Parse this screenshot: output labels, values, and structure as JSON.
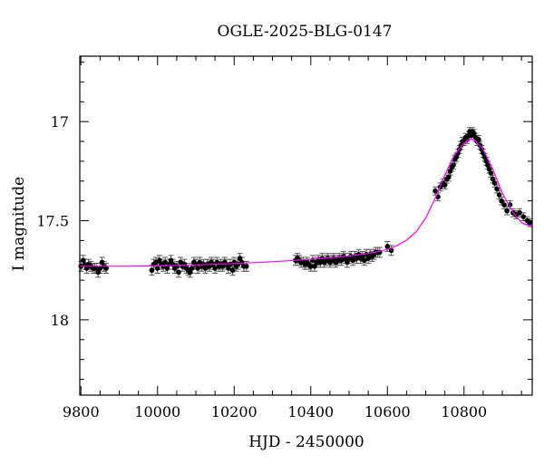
{
  "chart_data": {
    "type": "scatter",
    "title": "OGLE-2025-BLG-0147",
    "xlabel": "HJD - 2450000",
    "ylabel": "I magnitude",
    "xlim": [
      9797,
      10978
    ],
    "ylim": [
      18.38,
      16.67
    ],
    "y_inverted": true,
    "grid": false,
    "x_ticks": [
      9800,
      10000,
      10200,
      10400,
      10600,
      10800
    ],
    "y_ticks": [
      17,
      17.5,
      18
    ],
    "colors": {
      "points": "#000000",
      "errorbars": "#555555",
      "model": "#ff00ff",
      "axes": "#000000"
    },
    "series": [
      {
        "kind": "points_with_errorbars",
        "points": [
          [
            9800,
            17.73,
            0.025
          ],
          [
            9806,
            17.7,
            0.025
          ],
          [
            9810,
            17.72,
            0.025
          ],
          [
            9815,
            17.74,
            0.025
          ],
          [
            9820,
            17.72,
            0.025
          ],
          [
            9826,
            17.73,
            0.025
          ],
          [
            9832,
            17.74,
            0.025
          ],
          [
            9836,
            17.74,
            0.025
          ],
          [
            9840,
            17.74,
            0.025
          ],
          [
            9845,
            17.76,
            0.025
          ],
          [
            9850,
            17.74,
            0.025
          ],
          [
            9855,
            17.71,
            0.025
          ],
          [
            9860,
            17.73,
            0.025
          ],
          [
            9866,
            17.74,
            0.025
          ],
          [
            9985,
            17.75,
            0.025
          ],
          [
            9990,
            17.72,
            0.025
          ],
          [
            9996,
            17.71,
            0.025
          ],
          [
            10000,
            17.74,
            0.025
          ],
          [
            10005,
            17.7,
            0.025
          ],
          [
            10010,
            17.72,
            0.025
          ],
          [
            10015,
            17.73,
            0.025
          ],
          [
            10020,
            17.71,
            0.025
          ],
          [
            10025,
            17.74,
            0.025
          ],
          [
            10030,
            17.72,
            0.025
          ],
          [
            10035,
            17.7,
            0.025
          ],
          [
            10040,
            17.72,
            0.025
          ],
          [
            10045,
            17.74,
            0.025
          ],
          [
            10050,
            17.73,
            0.025
          ],
          [
            10055,
            17.76,
            0.025
          ],
          [
            10060,
            17.71,
            0.025
          ],
          [
            10065,
            17.73,
            0.025
          ],
          [
            10070,
            17.72,
            0.025
          ],
          [
            10075,
            17.74,
            0.025
          ],
          [
            10080,
            17.75,
            0.025
          ],
          [
            10085,
            17.76,
            0.025
          ],
          [
            10090,
            17.74,
            0.025
          ],
          [
            10095,
            17.71,
            0.025
          ],
          [
            10100,
            17.72,
            0.025
          ],
          [
            10105,
            17.74,
            0.025
          ],
          [
            10110,
            17.71,
            0.025
          ],
          [
            10115,
            17.73,
            0.025
          ],
          [
            10120,
            17.72,
            0.025
          ],
          [
            10125,
            17.74,
            0.025
          ],
          [
            10130,
            17.72,
            0.025
          ],
          [
            10135,
            17.73,
            0.025
          ],
          [
            10140,
            17.71,
            0.025
          ],
          [
            10145,
            17.72,
            0.025
          ],
          [
            10150,
            17.74,
            0.025
          ],
          [
            10155,
            17.71,
            0.025
          ],
          [
            10160,
            17.73,
            0.025
          ],
          [
            10165,
            17.72,
            0.025
          ],
          [
            10170,
            17.73,
            0.025
          ],
          [
            10175,
            17.71,
            0.025
          ],
          [
            10180,
            17.72,
            0.025
          ],
          [
            10185,
            17.74,
            0.025
          ],
          [
            10190,
            17.72,
            0.025
          ],
          [
            10196,
            17.75,
            0.025
          ],
          [
            10200,
            17.71,
            0.025
          ],
          [
            10205,
            17.73,
            0.025
          ],
          [
            10210,
            17.72,
            0.025
          ],
          [
            10215,
            17.69,
            0.025
          ],
          [
            10220,
            17.71,
            0.025
          ],
          [
            10225,
            17.73,
            0.025
          ],
          [
            10232,
            17.73,
            0.025
          ],
          [
            10360,
            17.7,
            0.025
          ],
          [
            10365,
            17.69,
            0.025
          ],
          [
            10370,
            17.7,
            0.025
          ],
          [
            10375,
            17.71,
            0.025
          ],
          [
            10380,
            17.71,
            0.025
          ],
          [
            10385,
            17.72,
            0.025
          ],
          [
            10390,
            17.71,
            0.025
          ],
          [
            10395,
            17.72,
            0.025
          ],
          [
            10400,
            17.73,
            0.025
          ],
          [
            10405,
            17.7,
            0.025
          ],
          [
            10410,
            17.73,
            0.025
          ],
          [
            10415,
            17.71,
            0.025
          ],
          [
            10420,
            17.7,
            0.025
          ],
          [
            10425,
            17.71,
            0.025
          ],
          [
            10430,
            17.69,
            0.025
          ],
          [
            10435,
            17.71,
            0.025
          ],
          [
            10440,
            17.7,
            0.025
          ],
          [
            10445,
            17.69,
            0.025
          ],
          [
            10450,
            17.71,
            0.025
          ],
          [
            10455,
            17.7,
            0.025
          ],
          [
            10460,
            17.69,
            0.025
          ],
          [
            10465,
            17.71,
            0.025
          ],
          [
            10470,
            17.7,
            0.025
          ],
          [
            10475,
            17.69,
            0.025
          ],
          [
            10480,
            17.7,
            0.025
          ],
          [
            10485,
            17.68,
            0.025
          ],
          [
            10490,
            17.69,
            0.025
          ],
          [
            10495,
            17.71,
            0.025
          ],
          [
            10500,
            17.69,
            0.025
          ],
          [
            10505,
            17.68,
            0.025
          ],
          [
            10510,
            17.7,
            0.025
          ],
          [
            10515,
            17.68,
            0.025
          ],
          [
            10520,
            17.69,
            0.025
          ],
          [
            10525,
            17.67,
            0.025
          ],
          [
            10530,
            17.69,
            0.025
          ],
          [
            10535,
            17.68,
            0.025
          ],
          [
            10540,
            17.7,
            0.025
          ],
          [
            10545,
            17.67,
            0.025
          ],
          [
            10550,
            17.69,
            0.025
          ],
          [
            10555,
            17.67,
            0.025
          ],
          [
            10560,
            17.68,
            0.025
          ],
          [
            10565,
            17.67,
            0.025
          ],
          [
            10570,
            17.66,
            0.025
          ],
          [
            10575,
            17.66,
            0.025
          ],
          [
            10580,
            17.66,
            0.025
          ],
          [
            10600,
            17.63,
            0.025
          ],
          [
            10610,
            17.65,
            0.025
          ],
          [
            10725,
            17.35,
            0.02
          ],
          [
            10732,
            17.38,
            0.02
          ],
          [
            10738,
            17.33,
            0.02
          ],
          [
            10745,
            17.31,
            0.02
          ],
          [
            10750,
            17.32,
            0.02
          ],
          [
            10755,
            17.29,
            0.02
          ],
          [
            10760,
            17.28,
            0.02
          ],
          [
            10764,
            17.25,
            0.02
          ],
          [
            10768,
            17.23,
            0.02
          ],
          [
            10772,
            17.22,
            0.02
          ],
          [
            10776,
            17.19,
            0.02
          ],
          [
            10780,
            17.18,
            0.02
          ],
          [
            10784,
            17.16,
            0.02
          ],
          [
            10788,
            17.14,
            0.02
          ],
          [
            10792,
            17.12,
            0.02
          ],
          [
            10796,
            17.1,
            0.02
          ],
          [
            10800,
            17.1,
            0.02
          ],
          [
            10804,
            17.08,
            0.02
          ],
          [
            10808,
            17.09,
            0.02
          ],
          [
            10812,
            17.07,
            0.02
          ],
          [
            10815,
            17.05,
            0.02
          ],
          [
            10818,
            17.07,
            0.02
          ],
          [
            10822,
            17.05,
            0.02
          ],
          [
            10826,
            17.06,
            0.02
          ],
          [
            10830,
            17.08,
            0.02
          ],
          [
            10834,
            17.1,
            0.02
          ],
          [
            10838,
            17.09,
            0.02
          ],
          [
            10842,
            17.12,
            0.02
          ],
          [
            10846,
            17.14,
            0.02
          ],
          [
            10850,
            17.16,
            0.02
          ],
          [
            10854,
            17.18,
            0.02
          ],
          [
            10858,
            17.2,
            0.02
          ],
          [
            10862,
            17.22,
            0.02
          ],
          [
            10866,
            17.24,
            0.02
          ],
          [
            10870,
            17.26,
            0.02
          ],
          [
            10875,
            17.29,
            0.02
          ],
          [
            10880,
            17.31,
            0.02
          ],
          [
            10886,
            17.34,
            0.02
          ],
          [
            10892,
            17.37,
            0.02
          ],
          [
            10898,
            17.4,
            0.02
          ],
          [
            10905,
            17.42,
            0.02
          ],
          [
            10912,
            17.45,
            0.02
          ],
          [
            10920,
            17.42,
            0.02
          ],
          [
            10928,
            17.46,
            0.02
          ],
          [
            10936,
            17.47,
            0.02
          ],
          [
            10945,
            17.46,
            0.02
          ],
          [
            10955,
            17.48,
            0.02
          ],
          [
            10965,
            17.5,
            0.02
          ],
          [
            10972,
            17.51,
            0.02
          ]
        ]
      },
      {
        "kind": "model_curve",
        "points": [
          [
            9797,
            17.73
          ],
          [
            9900,
            17.73
          ],
          [
            10000,
            17.728
          ],
          [
            10100,
            17.723
          ],
          [
            10200,
            17.716
          ],
          [
            10300,
            17.707
          ],
          [
            10400,
            17.695
          ],
          [
            10450,
            17.687
          ],
          [
            10500,
            17.678
          ],
          [
            10550,
            17.666
          ],
          [
            10600,
            17.645
          ],
          [
            10625,
            17.625
          ],
          [
            10650,
            17.598
          ],
          [
            10675,
            17.556
          ],
          [
            10700,
            17.487
          ],
          [
            10725,
            17.386
          ],
          [
            10750,
            17.27
          ],
          [
            10775,
            17.167
          ],
          [
            10800,
            17.11
          ],
          [
            10812,
            17.09
          ],
          [
            10825,
            17.09
          ],
          [
            10850,
            17.14
          ],
          [
            10875,
            17.24
          ],
          [
            10900,
            17.36
          ],
          [
            10925,
            17.45
          ],
          [
            10950,
            17.51
          ],
          [
            10978,
            17.53
          ]
        ]
      }
    ]
  }
}
